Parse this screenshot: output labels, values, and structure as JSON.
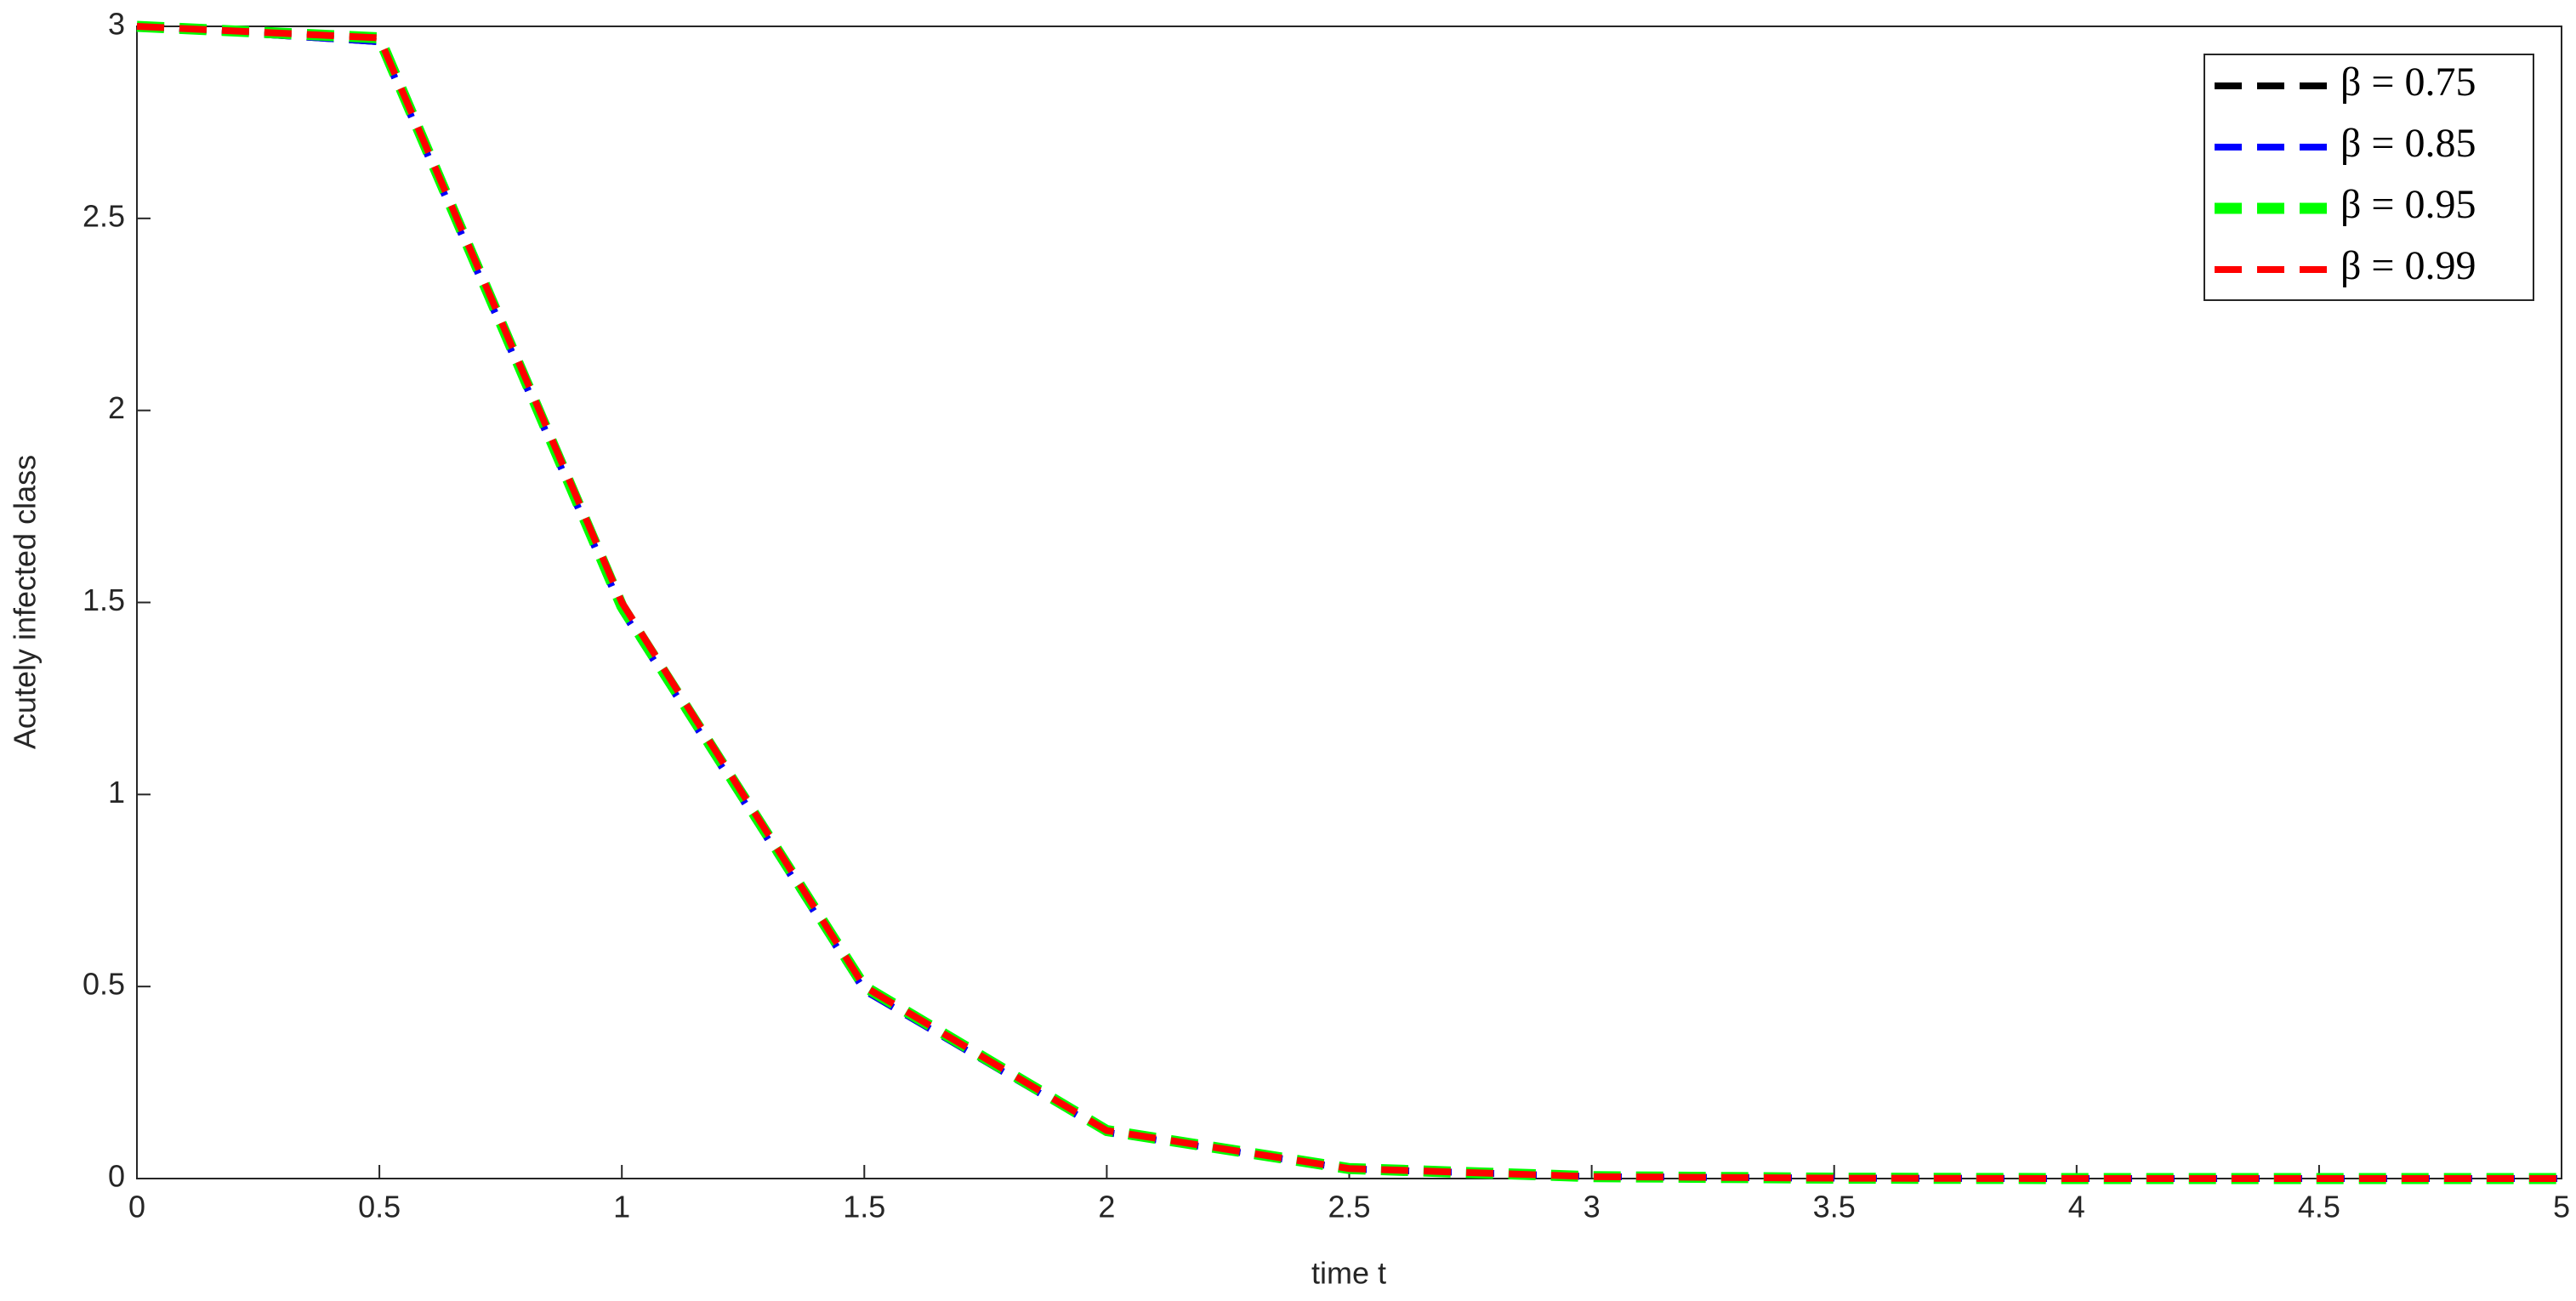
{
  "chart_data": {
    "type": "line",
    "x_label": "time t",
    "y_label": "Acutely infected class",
    "x": [
      0,
      0.5,
      1,
      1.5,
      2,
      2.5,
      3,
      3.5,
      4,
      4.5,
      5
    ],
    "series": [
      {
        "name": "β = 0.75",
        "color": "#000000",
        "values": [
          3,
          2.96,
          1.48,
          0.49,
          0.12,
          0.025,
          0.005,
          0.001,
          0,
          0,
          0
        ]
      },
      {
        "name": "β = 0.85",
        "color": "#0000ff",
        "values": [
          3,
          2.96,
          1.48,
          0.49,
          0.12,
          0.025,
          0.005,
          0.001,
          0,
          0,
          0
        ]
      },
      {
        "name": "β = 0.95",
        "color": "#00ff00",
        "values": [
          3,
          2.97,
          1.49,
          0.5,
          0.125,
          0.026,
          0.005,
          0.001,
          0,
          0,
          0
        ]
      },
      {
        "name": "β = 0.99",
        "color": "#ff0000",
        "values": [
          3,
          2.97,
          1.5,
          0.5,
          0.125,
          0.026,
          0.005,
          0.001,
          0,
          0,
          0
        ]
      }
    ],
    "xlim": [
      0,
      5
    ],
    "xticks": [
      0,
      0.5,
      1,
      1.5,
      2,
      2.5,
      3,
      3.5,
      4,
      4.5,
      5
    ],
    "ylim": [
      0,
      3
    ],
    "yticks": [
      0,
      0.5,
      1,
      1.5,
      2,
      2.5,
      3
    ],
    "grid": false,
    "legend": "top-right"
  }
}
